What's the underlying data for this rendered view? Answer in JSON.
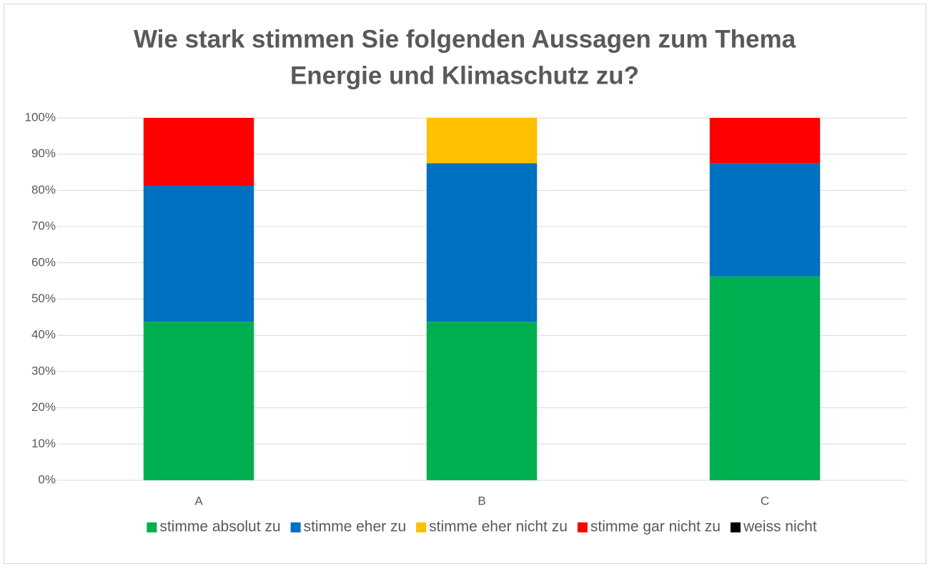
{
  "chart_data": {
    "type": "stacked_bar",
    "title": [
      "Wie stark stimmen Sie folgenden Aussagen zum Thema",
      "Energie und Klimaschutz zu?"
    ],
    "categories": [
      "A",
      "B",
      "C"
    ],
    "series": [
      {
        "name": "stimme absolut zu",
        "color": "#00b050",
        "values": [
          43.75,
          43.75,
          56.25
        ]
      },
      {
        "name": "stimme eher zu",
        "color": "#0070c0",
        "values": [
          37.5,
          43.75,
          31.25
        ]
      },
      {
        "name": "stimme eher nicht zu",
        "color": "#ffc000",
        "values": [
          0,
          12.5,
          0
        ]
      },
      {
        "name": "stimme gar nicht zu",
        "color": "#ff0000",
        "values": [
          18.75,
          0,
          12.5
        ]
      },
      {
        "name": "weiss nicht",
        "color": "#000000",
        "values": [
          0,
          0,
          0
        ]
      }
    ],
    "ylim": [
      0,
      100
    ],
    "yticks": [
      {
        "value": 0,
        "label": "0%"
      },
      {
        "value": 10,
        "label": "10%"
      },
      {
        "value": 20,
        "label": "20%"
      },
      {
        "value": 30,
        "label": "30%"
      },
      {
        "value": 40,
        "label": "40%"
      },
      {
        "value": 50,
        "label": "50%"
      },
      {
        "value": 60,
        "label": "60%"
      },
      {
        "value": 70,
        "label": "70%"
      },
      {
        "value": 80,
        "label": "80%"
      },
      {
        "value": 90,
        "label": "90%"
      },
      {
        "value": 100,
        "label": "100%"
      }
    ],
    "grid": true,
    "legend": "bottom"
  }
}
